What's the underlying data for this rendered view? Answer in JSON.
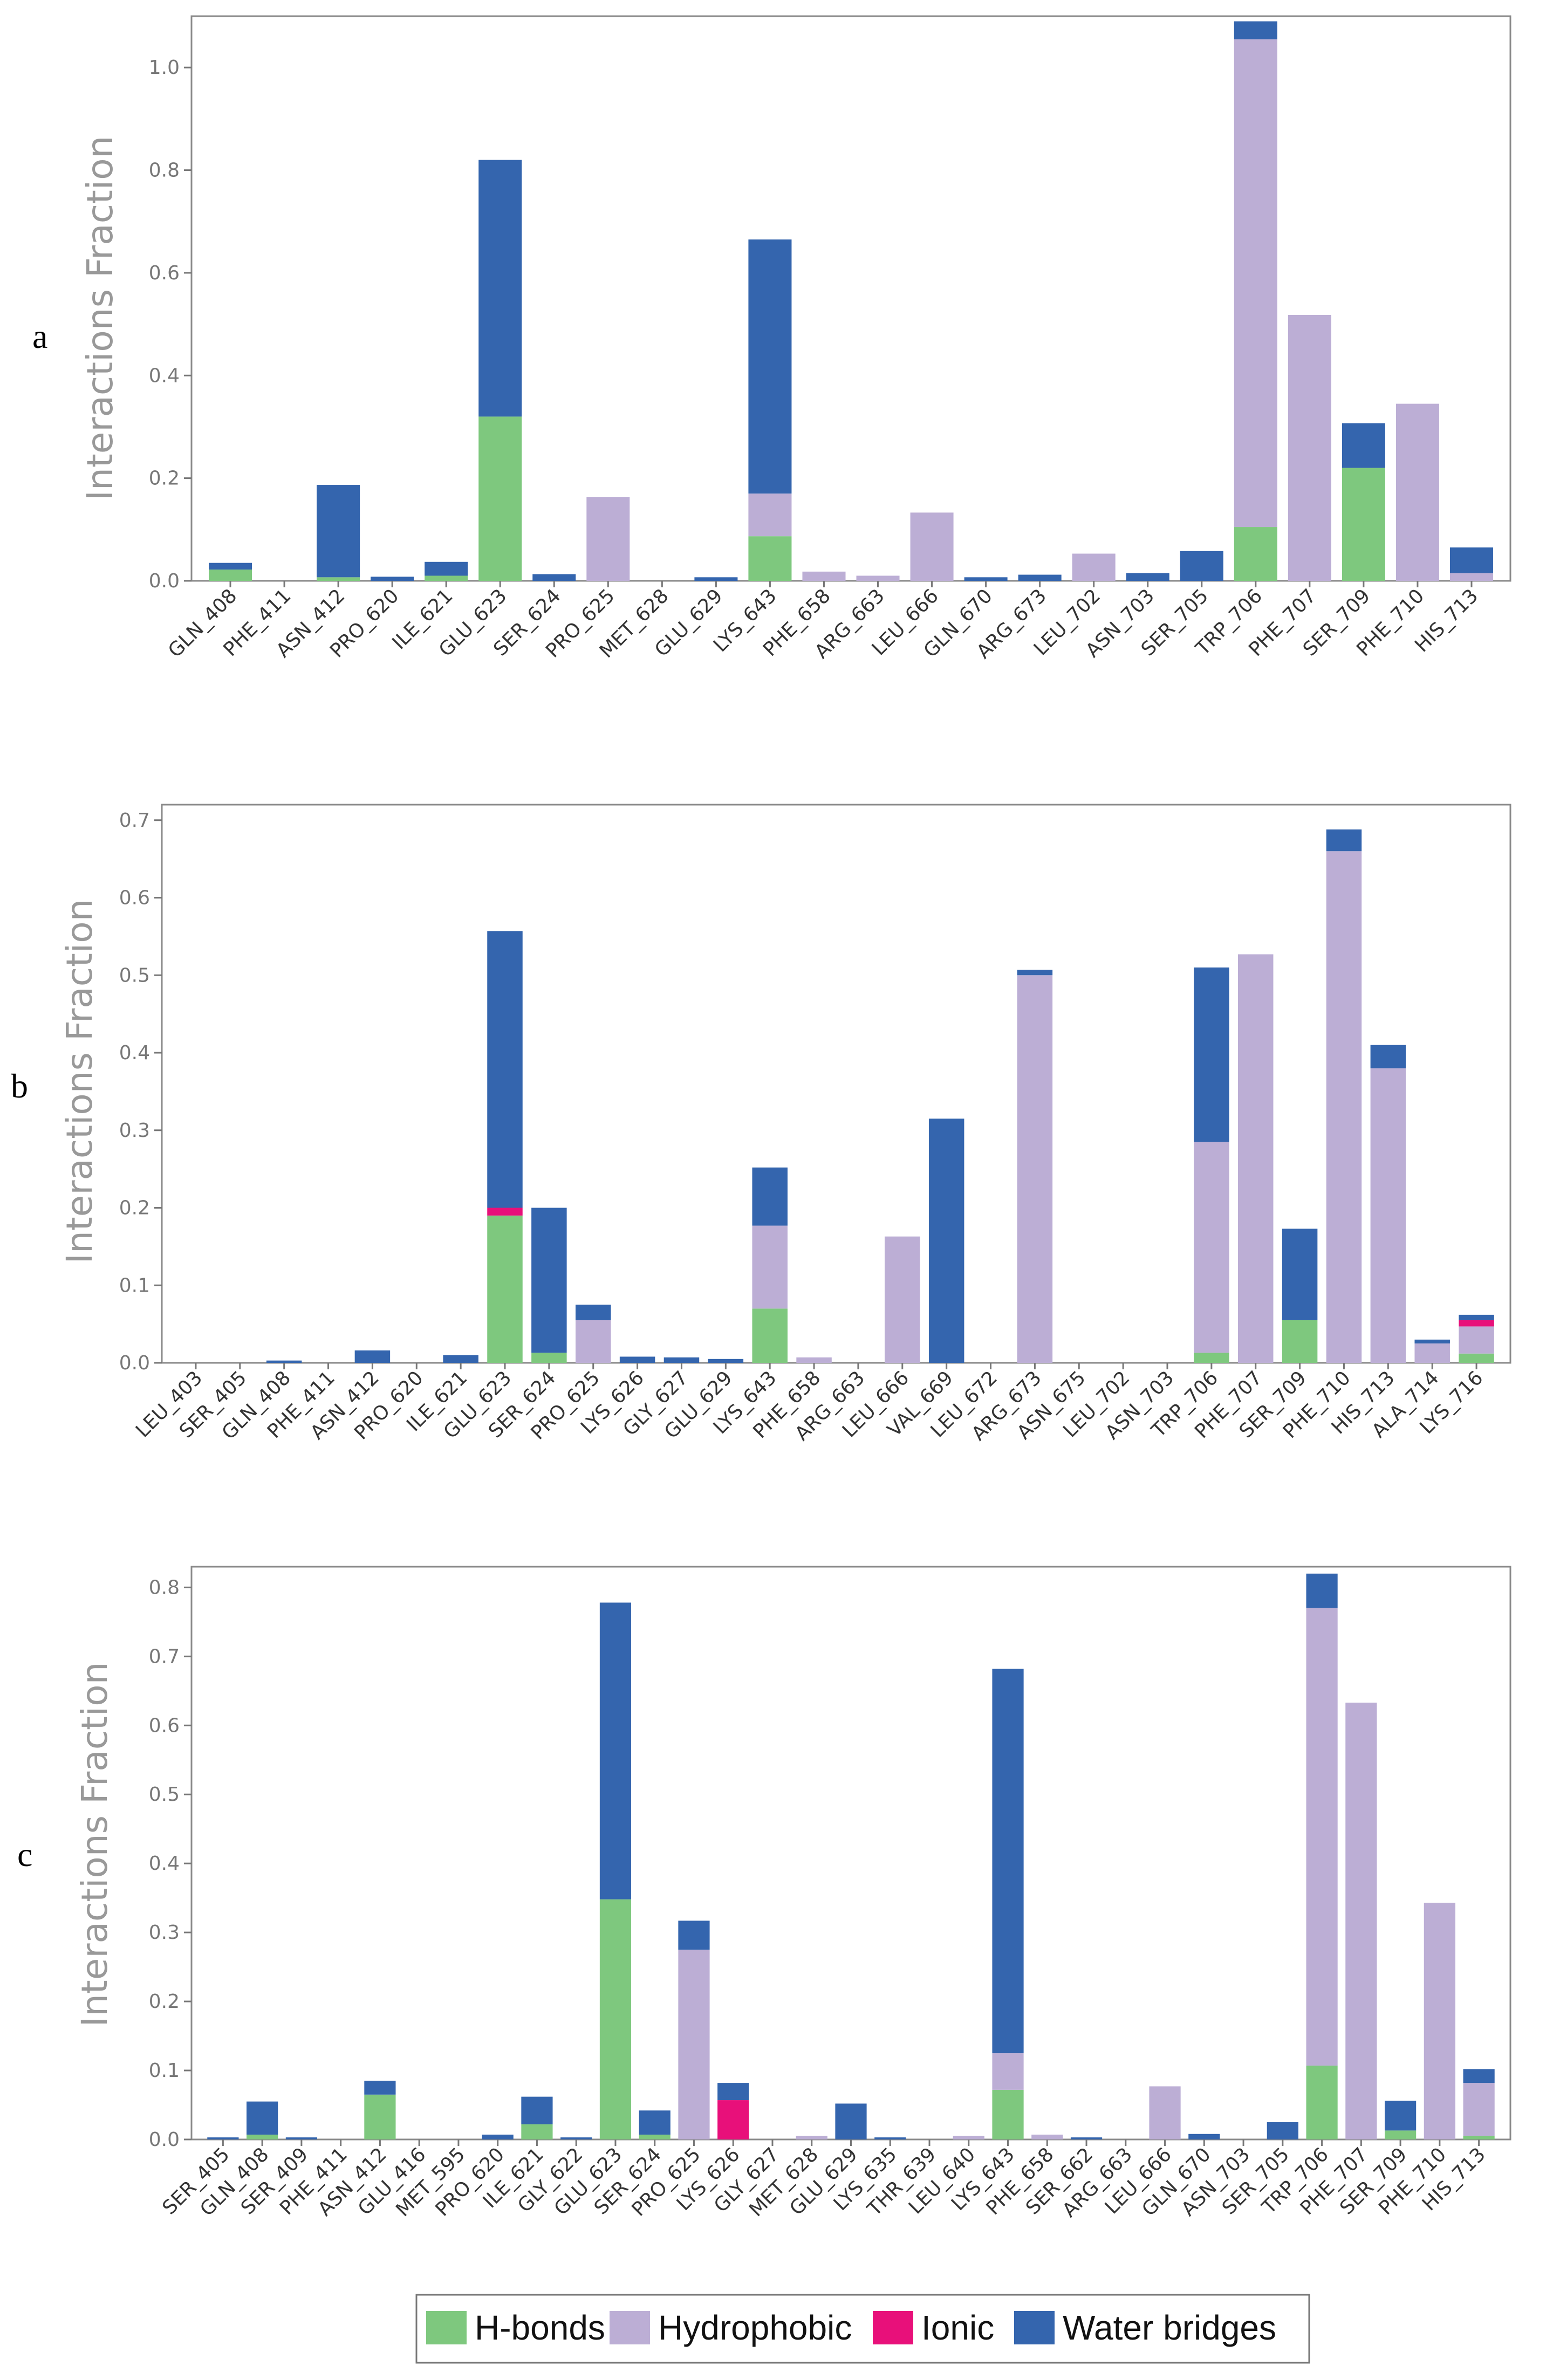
{
  "colors": {
    "hbonds": "#7ec87e",
    "hydrophobic": "#bcaed5",
    "ionic": "#e8107a",
    "water": "#3465ae"
  },
  "legend": {
    "items": [
      {
        "key": "hbonds",
        "label": "H-bonds"
      },
      {
        "key": "hydrophobic",
        "label": "Hydrophobic"
      },
      {
        "key": "ionic",
        "label": "Ionic"
      },
      {
        "key": "water",
        "label": "Water bridges"
      }
    ]
  },
  "chart_data": [
    {
      "type": "bar",
      "stacked": true,
      "panel_label": "a",
      "ylabel": "Interactions Fraction",
      "ylim": [
        0,
        1.1
      ],
      "yticks": [
        0.0,
        0.2,
        0.4,
        0.6,
        0.8,
        1.0
      ],
      "ytick_labels": [
        "0.0",
        "0.2",
        "0.4",
        "0.6",
        "0.8",
        "1.0"
      ],
      "categories": [
        "GLN_408",
        "PHE_411",
        "ASN_412",
        "PRO_620",
        "ILE_621",
        "GLU_623",
        "SER_624",
        "PRO_625",
        "MET_628",
        "GLU_629",
        "LYS_643",
        "PHE_658",
        "ARG_663",
        "LEU_666",
        "GLN_670",
        "ARG_673",
        "LEU_702",
        "ASN_703",
        "SER_705",
        "TRP_706",
        "PHE_707",
        "SER_709",
        "PHE_710",
        "HIS_713"
      ],
      "series": [
        {
          "name": "H-bonds",
          "key": "hbonds",
          "values": [
            0.022,
            0,
            0.007,
            0,
            0.01,
            0.32,
            0,
            0,
            0,
            0,
            0.087,
            0,
            0,
            0,
            0,
            0,
            0,
            0,
            0,
            0.105,
            0,
            0.22,
            0,
            0
          ]
        },
        {
          "name": "Hydrophobic",
          "key": "hydrophobic",
          "values": [
            0,
            0,
            0,
            0,
            0,
            0,
            0,
            0.163,
            0,
            0,
            0.083,
            0.018,
            0.01,
            0.133,
            0,
            0,
            0.053,
            0,
            0,
            0.95,
            0.518,
            0,
            0.345,
            0.015
          ]
        },
        {
          "name": "Ionic",
          "key": "ionic",
          "values": [
            0,
            0,
            0,
            0,
            0,
            0,
            0,
            0,
            0,
            0,
            0,
            0,
            0,
            0,
            0,
            0,
            0,
            0,
            0,
            0,
            0,
            0,
            0,
            0
          ]
        },
        {
          "name": "Water bridges",
          "key": "water",
          "values": [
            0.013,
            0,
            0.18,
            0.008,
            0.027,
            0.5,
            0.013,
            0,
            0,
            0.007,
            0.495,
            0,
            0,
            0,
            0.007,
            0.012,
            0,
            0.015,
            0.058,
            0.035,
            0,
            0.087,
            0,
            0.05
          ]
        }
      ]
    },
    {
      "type": "bar",
      "stacked": true,
      "panel_label": "b",
      "ylabel": "Interactions Fraction",
      "ylim": [
        0,
        0.72
      ],
      "yticks": [
        0.0,
        0.1,
        0.2,
        0.3,
        0.4,
        0.5,
        0.6,
        0.7
      ],
      "ytick_labels": [
        "0.0",
        "0.1",
        "0.2",
        "0.3",
        "0.4",
        "0.5",
        "0.6",
        "0.7"
      ],
      "categories": [
        "LEU_403",
        "SER_405",
        "GLN_408",
        "PHE_411",
        "ASN_412",
        "PRO_620",
        "ILE_621",
        "GLU_623",
        "SER_624",
        "PRO_625",
        "LYS_626",
        "GLY_627",
        "GLU_629",
        "LYS_643",
        "PHE_658",
        "ARG_663",
        "LEU_666",
        "VAL_669",
        "LEU_672",
        "ARG_673",
        "ASN_675",
        "LEU_702",
        "ASN_703",
        "TRP_706",
        "PHE_707",
        "SER_709",
        "PHE_710",
        "HIS_713",
        "ALA_714",
        "LYS_716"
      ],
      "series": [
        {
          "name": "H-bonds",
          "key": "hbonds",
          "values": [
            0,
            0,
            0,
            0,
            0,
            0,
            0,
            0.19,
            0.013,
            0,
            0,
            0,
            0,
            0.07,
            0,
            0,
            0,
            0,
            0,
            0,
            0,
            0,
            0,
            0.013,
            0,
            0.055,
            0,
            0,
            0,
            0.012
          ]
        },
        {
          "name": "Hydrophobic",
          "key": "hydrophobic",
          "values": [
            0,
            0,
            0,
            0,
            0,
            0,
            0,
            0,
            0,
            0.055,
            0,
            0,
            0,
            0.107,
            0.007,
            0,
            0.163,
            0,
            0,
            0.5,
            0,
            0,
            0,
            0.272,
            0.527,
            0,
            0.66,
            0.38,
            0.025,
            0.035
          ]
        },
        {
          "name": "Ionic",
          "key": "ionic",
          "values": [
            0,
            0,
            0,
            0,
            0,
            0,
            0,
            0.01,
            0,
            0,
            0,
            0,
            0,
            0,
            0,
            0,
            0,
            0,
            0,
            0,
            0,
            0,
            0,
            0,
            0,
            0,
            0,
            0,
            0,
            0.008
          ]
        },
        {
          "name": "Water bridges",
          "key": "water",
          "values": [
            0,
            0,
            0.003,
            0,
            0.016,
            0,
            0.01,
            0.357,
            0.187,
            0.02,
            0.008,
            0.007,
            0.005,
            0.075,
            0,
            0,
            0,
            0.315,
            0,
            0.007,
            0,
            0,
            0,
            0.225,
            0,
            0.118,
            0.028,
            0.03,
            0.005,
            0.007
          ]
        }
      ]
    },
    {
      "type": "bar",
      "stacked": true,
      "panel_label": "c",
      "ylabel": "Interactions Fraction",
      "ylim": [
        0,
        0.83
      ],
      "yticks": [
        0.0,
        0.1,
        0.2,
        0.3,
        0.4,
        0.5,
        0.6,
        0.7,
        0.8
      ],
      "ytick_labels": [
        "0.0",
        "0.1",
        "0.2",
        "0.3",
        "0.4",
        "0.5",
        "0.6",
        "0.7",
        "0.8"
      ],
      "categories": [
        "SER_405",
        "GLN_408",
        "SER_409",
        "PHE_411",
        "ASN_412",
        "GLU_416",
        "MET_595",
        "PRO_620",
        "ILE_621",
        "GLY_622",
        "GLU_623",
        "SER_624",
        "PRO_625",
        "LYS_626",
        "GLY_627",
        "MET_628",
        "GLU_629",
        "LYS_635",
        "THR_639",
        "LEU_640",
        "LYS_643",
        "PHE_658",
        "SER_662",
        "ARG_663",
        "LEU_666",
        "GLN_670",
        "ASN_703",
        "SER_705",
        "TRP_706",
        "PHE_707",
        "SER_709",
        "PHE_710",
        "HIS_713"
      ],
      "series": [
        {
          "name": "H-bonds",
          "key": "hbonds",
          "values": [
            0,
            0.007,
            0,
            0,
            0.065,
            0,
            0,
            0,
            0.022,
            0,
            0.348,
            0.007,
            0,
            0,
            0,
            0,
            0,
            0,
            0,
            0,
            0.072,
            0,
            0,
            0,
            0,
            0,
            0,
            0,
            0.107,
            0,
            0.013,
            0,
            0.005
          ]
        },
        {
          "name": "Hydrophobic",
          "key": "hydrophobic",
          "values": [
            0,
            0,
            0,
            0,
            0,
            0,
            0,
            0,
            0,
            0,
            0,
            0,
            0.275,
            0,
            0,
            0.005,
            0,
            0,
            0,
            0.005,
            0.053,
            0.007,
            0,
            0,
            0.077,
            0,
            0,
            0,
            0.663,
            0.633,
            0,
            0.343,
            0.077
          ]
        },
        {
          "name": "Ionic",
          "key": "ionic",
          "values": [
            0,
            0,
            0,
            0,
            0,
            0,
            0,
            0,
            0,
            0,
            0,
            0,
            0,
            0.057,
            0,
            0,
            0,
            0,
            0,
            0,
            0,
            0,
            0,
            0,
            0,
            0,
            0,
            0,
            0,
            0,
            0,
            0,
            0
          ]
        },
        {
          "name": "Water bridges",
          "key": "water",
          "values": [
            0.003,
            0.048,
            0.003,
            0,
            0.02,
            0,
            0,
            0.007,
            0.04,
            0.003,
            0.43,
            0.035,
            0.042,
            0.025,
            0,
            0,
            0.052,
            0.003,
            0,
            0,
            0.557,
            0,
            0.003,
            0,
            0,
            0.008,
            0,
            0.025,
            0.05,
            0,
            0.043,
            0,
            0.02
          ]
        }
      ]
    }
  ]
}
